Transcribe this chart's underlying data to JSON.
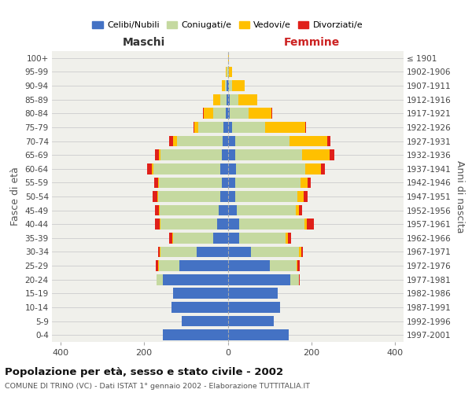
{
  "age_groups": [
    "0-4",
    "5-9",
    "10-14",
    "15-19",
    "20-24",
    "25-29",
    "30-34",
    "35-39",
    "40-44",
    "45-49",
    "50-54",
    "55-59",
    "60-64",
    "65-69",
    "70-74",
    "75-79",
    "80-84",
    "85-89",
    "90-94",
    "95-99",
    "100+"
  ],
  "birth_years": [
    "1997-2001",
    "1992-1996",
    "1987-1991",
    "1982-1986",
    "1977-1981",
    "1972-1976",
    "1967-1971",
    "1962-1966",
    "1957-1961",
    "1952-1956",
    "1947-1951",
    "1942-1946",
    "1937-1941",
    "1932-1936",
    "1927-1931",
    "1922-1926",
    "1917-1921",
    "1912-1916",
    "1907-1911",
    "1902-1906",
    "≤ 1901"
  ],
  "male_celibe": [
    155,
    110,
    135,
    130,
    155,
    115,
    75,
    35,
    25,
    22,
    18,
    14,
    17,
    15,
    12,
    10,
    5,
    2,
    2,
    0,
    0
  ],
  "male_coniugato": [
    0,
    0,
    0,
    0,
    15,
    50,
    85,
    95,
    135,
    140,
    148,
    150,
    160,
    145,
    110,
    60,
    30,
    15,
    5,
    2,
    0
  ],
  "male_vedovo": [
    0,
    0,
    0,
    0,
    0,
    2,
    2,
    2,
    2,
    2,
    2,
    2,
    5,
    5,
    8,
    10,
    22,
    18,
    8,
    2,
    0
  ],
  "male_divorziato": [
    0,
    0,
    0,
    0,
    0,
    5,
    5,
    8,
    12,
    10,
    12,
    10,
    10,
    8,
    10,
    2,
    2,
    0,
    0,
    0,
    0
  ],
  "female_celibe": [
    145,
    110,
    125,
    120,
    150,
    100,
    55,
    28,
    28,
    22,
    18,
    18,
    20,
    18,
    18,
    10,
    5,
    5,
    2,
    0,
    0
  ],
  "female_coniugata": [
    0,
    0,
    0,
    0,
    20,
    65,
    115,
    110,
    155,
    140,
    148,
    155,
    165,
    160,
    130,
    80,
    45,
    20,
    8,
    2,
    0
  ],
  "female_vedova": [
    0,
    0,
    0,
    0,
    0,
    2,
    5,
    5,
    5,
    8,
    15,
    18,
    38,
    65,
    90,
    95,
    55,
    45,
    30,
    8,
    2
  ],
  "female_divorziata": [
    0,
    0,
    0,
    0,
    2,
    5,
    5,
    8,
    18,
    8,
    10,
    8,
    10,
    12,
    8,
    2,
    2,
    0,
    0,
    0,
    0
  ],
  "color_celibe": "#4472c4",
  "color_coniugato": "#c5d9a0",
  "color_vedovo": "#ffc000",
  "color_divorziato": "#e0201a",
  "title_main": "Popolazione per età, sesso e stato civile - 2002",
  "title_sub": "COMUNE DI TRINO (VC) - Dati ISTAT 1° gennaio 2002 - Elaborazione TUTTITALIA.IT",
  "ylabel": "Fasce di età",
  "ylabel_right": "Anni di nascita",
  "label_maschi": "Maschi",
  "label_femmine": "Femmine",
  "bg_color": "#f0f0eb",
  "grid_color": "#cccccc",
  "xlim": 420
}
